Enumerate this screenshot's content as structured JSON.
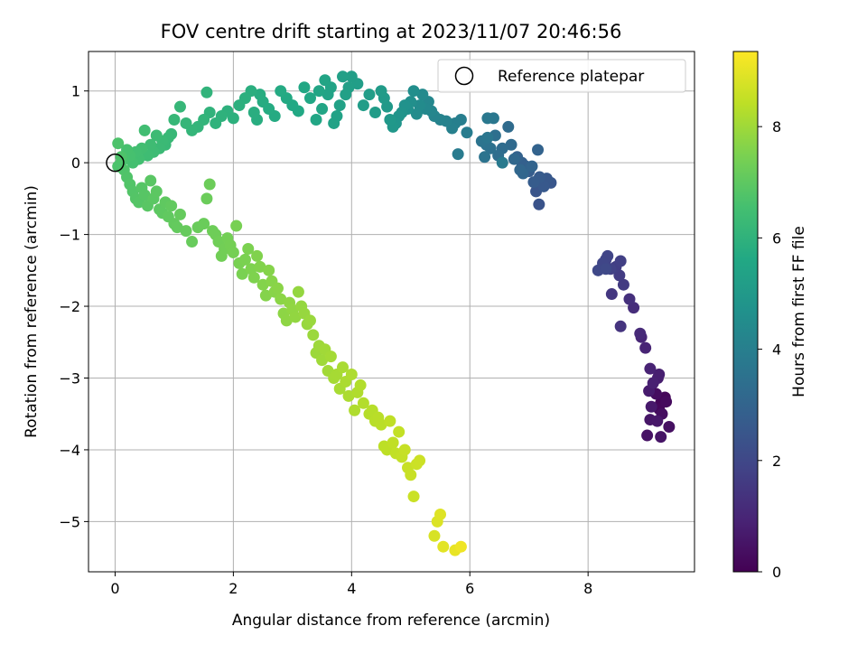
{
  "chart_data": {
    "type": "scatter",
    "title": "FOV centre drift starting at 2023/11/07 20:46:56",
    "xlabel": "Angular distance from reference (arcmin)",
    "ylabel": "Rotation from reference (arcmin)",
    "xlim": [
      -0.45,
      9.8
    ],
    "ylim": [
      -5.7,
      1.55
    ],
    "xticks": [
      "0",
      "2",
      "4",
      "6",
      "8"
    ],
    "yticks": [
      "1",
      "0",
      "−1",
      "−2",
      "−3",
      "−4",
      "−5"
    ],
    "grid": true,
    "legend": {
      "label": "Reference platepar",
      "placement": "top-right"
    },
    "reference_point": {
      "x": 0,
      "y": 0
    },
    "colorbar": {
      "label": "Hours from first FF file",
      "colormap": "viridis",
      "range": [
        0,
        9.35
      ],
      "ticks": [
        "0",
        "2",
        "4",
        "6",
        "8"
      ]
    },
    "points": [
      [
        9.27,
        -3.3,
        0.05
      ],
      [
        9.23,
        -3.35,
        0.1
      ],
      [
        9.3,
        -3.27,
        0.15
      ],
      [
        9.2,
        -3.43,
        0.2
      ],
      [
        9.32,
        -3.33,
        0.25
      ],
      [
        9.15,
        -3.22,
        0.3
      ],
      [
        9.25,
        -3.5,
        0.35
      ],
      [
        9.37,
        -3.68,
        0.4
      ],
      [
        9.0,
        -3.8,
        0.45
      ],
      [
        9.23,
        -3.82,
        0.5
      ],
      [
        9.05,
        -3.58,
        0.55
      ],
      [
        9.17,
        -3.6,
        0.6
      ],
      [
        9.07,
        -3.4,
        0.65
      ],
      [
        9.03,
        -3.18,
        0.7
      ],
      [
        9.18,
        -3.0,
        0.75
      ],
      [
        9.2,
        -2.95,
        0.8
      ],
      [
        9.1,
        -3.07,
        0.85
      ],
      [
        9.05,
        -2.87,
        0.9
      ],
      [
        8.97,
        -2.58,
        0.95
      ],
      [
        8.9,
        -2.43,
        1.0
      ],
      [
        8.88,
        -2.38,
        1.1
      ],
      [
        8.77,
        -2.02,
        1.2
      ],
      [
        8.7,
        -1.9,
        1.3
      ],
      [
        8.55,
        -2.28,
        1.4
      ],
      [
        8.4,
        -1.83,
        1.5
      ],
      [
        8.6,
        -1.7,
        1.6
      ],
      [
        8.53,
        -1.57,
        1.65
      ],
      [
        8.47,
        -1.45,
        1.7
      ],
      [
        8.55,
        -1.37,
        1.75
      ],
      [
        8.38,
        -1.48,
        1.8
      ],
      [
        8.3,
        -1.35,
        1.85
      ],
      [
        8.33,
        -1.3,
        1.9
      ],
      [
        8.25,
        -1.4,
        1.95
      ],
      [
        8.17,
        -1.5,
        2.0
      ],
      [
        8.3,
        -1.48,
        2.05
      ],
      [
        7.17,
        -0.58,
        2.4
      ],
      [
        7.12,
        -0.4,
        2.45
      ],
      [
        7.37,
        -0.28,
        2.5
      ],
      [
        7.3,
        -0.22,
        2.55
      ],
      [
        7.25,
        -0.33,
        2.6
      ],
      [
        7.18,
        -0.2,
        2.65
      ],
      [
        7.08,
        -0.27,
        2.7
      ],
      [
        7.0,
        -0.12,
        2.75
      ],
      [
        6.95,
        -0.05,
        2.8
      ],
      [
        6.88,
        0.0,
        2.85
      ],
      [
        6.8,
        0.08,
        2.9
      ],
      [
        7.15,
        0.18,
        2.95
      ],
      [
        7.05,
        -0.05,
        3.0
      ],
      [
        6.9,
        -0.15,
        3.05
      ],
      [
        6.85,
        -0.1,
        3.1
      ],
      [
        6.75,
        0.05,
        3.15
      ],
      [
        6.7,
        0.25,
        3.2
      ],
      [
        6.65,
        0.5,
        3.25
      ],
      [
        6.55,
        0.2,
        3.3
      ],
      [
        6.48,
        0.1,
        3.35
      ],
      [
        6.43,
        0.38,
        3.4
      ],
      [
        6.35,
        0.2,
        3.45
      ],
      [
        6.28,
        0.25,
        3.5
      ],
      [
        6.25,
        0.08,
        3.55
      ],
      [
        6.2,
        0.3,
        3.6
      ],
      [
        6.3,
        0.35,
        3.65
      ],
      [
        6.4,
        0.62,
        3.7
      ],
      [
        6.3,
        0.62,
        3.75
      ],
      [
        6.55,
        0.0,
        3.8
      ],
      [
        5.8,
        0.12,
        3.85
      ],
      [
        5.95,
        0.42,
        3.9
      ],
      [
        5.85,
        0.6,
        3.95
      ],
      [
        5.75,
        0.55,
        4.0
      ],
      [
        5.7,
        0.48,
        4.05
      ],
      [
        5.6,
        0.58,
        4.1
      ],
      [
        5.5,
        0.6,
        4.15
      ],
      [
        5.4,
        0.65,
        4.2
      ],
      [
        5.35,
        0.72,
        4.25
      ],
      [
        5.3,
        0.85,
        4.3
      ],
      [
        5.25,
        0.75,
        4.35
      ],
      [
        5.2,
        0.95,
        4.4
      ],
      [
        5.15,
        0.8,
        4.45
      ],
      [
        5.1,
        0.68,
        4.5
      ],
      [
        5.05,
        1.0,
        4.55
      ],
      [
        5.0,
        0.85,
        4.6
      ],
      [
        4.95,
        0.75,
        4.65
      ],
      [
        4.9,
        0.8,
        4.7
      ],
      [
        4.85,
        0.7,
        4.75
      ],
      [
        4.8,
        0.65,
        4.8
      ],
      [
        4.75,
        0.55,
        4.85
      ],
      [
        4.7,
        0.5,
        4.9
      ],
      [
        4.65,
        0.6,
        4.95
      ],
      [
        4.6,
        0.78,
        5.0
      ],
      [
        4.55,
        0.9,
        5.05
      ],
      [
        4.5,
        1.0,
        5.1
      ],
      [
        4.4,
        0.7,
        5.12
      ],
      [
        4.3,
        0.95,
        5.15
      ],
      [
        4.2,
        0.8,
        5.18
      ],
      [
        4.1,
        1.1,
        5.2
      ],
      [
        4.0,
        1.2,
        5.22
      ],
      [
        3.95,
        1.05,
        5.25
      ],
      [
        3.9,
        0.95,
        5.28
      ],
      [
        3.85,
        1.2,
        5.3
      ],
      [
        3.8,
        0.8,
        5.32
      ],
      [
        3.75,
        0.65,
        5.35
      ],
      [
        3.7,
        0.55,
        5.38
      ],
      [
        3.65,
        1.05,
        5.4
      ],
      [
        3.6,
        0.95,
        5.42
      ],
      [
        3.55,
        1.15,
        5.45
      ],
      [
        3.5,
        0.75,
        5.48
      ],
      [
        3.45,
        1.0,
        5.5
      ],
      [
        3.4,
        0.6,
        5.52
      ],
      [
        3.3,
        0.9,
        5.55
      ],
      [
        3.2,
        1.05,
        5.58
      ],
      [
        3.1,
        0.72,
        5.6
      ],
      [
        3.0,
        0.8,
        5.62
      ],
      [
        2.9,
        0.9,
        5.65
      ],
      [
        2.8,
        1.0,
        5.68
      ],
      [
        2.7,
        0.65,
        5.7
      ],
      [
        2.6,
        0.75,
        5.72
      ],
      [
        2.5,
        0.85,
        5.75
      ],
      [
        2.45,
        0.95,
        5.78
      ],
      [
        2.4,
        0.6,
        5.8
      ],
      [
        2.35,
        0.7,
        5.82
      ],
      [
        2.3,
        1.0,
        5.85
      ],
      [
        2.2,
        0.9,
        5.88
      ],
      [
        2.1,
        0.8,
        5.9
      ],
      [
        2.0,
        0.62,
        5.92
      ],
      [
        1.9,
        0.72,
        5.95
      ],
      [
        1.8,
        0.65,
        5.98
      ],
      [
        1.7,
        0.55,
        6.0
      ],
      [
        1.6,
        0.7,
        6.02
      ],
      [
        1.55,
        0.98,
        6.05
      ],
      [
        1.5,
        0.6,
        6.08
      ],
      [
        1.4,
        0.5,
        6.1
      ],
      [
        1.3,
        0.45,
        6.12
      ],
      [
        1.2,
        0.55,
        6.15
      ],
      [
        1.1,
        0.78,
        6.18
      ],
      [
        1.0,
        0.6,
        6.2
      ],
      [
        0.95,
        0.4,
        6.22
      ],
      [
        0.9,
        0.35,
        6.25
      ],
      [
        0.85,
        0.25,
        6.28
      ],
      [
        0.8,
        0.3,
        6.3
      ],
      [
        0.75,
        0.2,
        6.32
      ],
      [
        0.7,
        0.38,
        6.35
      ],
      [
        0.65,
        0.15,
        6.38
      ],
      [
        0.6,
        0.25,
        6.4
      ],
      [
        0.55,
        0.1,
        6.42
      ],
      [
        0.5,
        0.45,
        6.45
      ],
      [
        0.45,
        0.2,
        6.48
      ],
      [
        0.4,
        0.05,
        6.5
      ],
      [
        0.35,
        0.15,
        6.52
      ],
      [
        0.3,
        0.0,
        6.55
      ],
      [
        0.25,
        0.1,
        6.58
      ],
      [
        0.2,
        0.18,
        6.6
      ],
      [
        0.15,
        0.05,
        6.62
      ],
      [
        0.1,
        0.0,
        6.65
      ],
      [
        0.05,
        -0.05,
        6.68
      ],
      [
        0.05,
        0.27,
        6.7
      ],
      [
        0.1,
        0.08,
        6.72
      ],
      [
        0.15,
        -0.1,
        6.74
      ],
      [
        0.2,
        -0.2,
        6.76
      ],
      [
        0.25,
        -0.3,
        6.78
      ],
      [
        0.3,
        -0.4,
        6.8
      ],
      [
        0.35,
        -0.5,
        6.82
      ],
      [
        0.4,
        -0.55,
        6.84
      ],
      [
        0.45,
        -0.35,
        6.86
      ],
      [
        0.5,
        -0.45,
        6.88
      ],
      [
        0.55,
        -0.6,
        6.9
      ],
      [
        0.6,
        -0.25,
        6.92
      ],
      [
        0.65,
        -0.5,
        6.94
      ],
      [
        0.7,
        -0.4,
        6.96
      ],
      [
        0.75,
        -0.65,
        6.98
      ],
      [
        0.8,
        -0.7,
        7.0
      ],
      [
        0.85,
        -0.55,
        7.02
      ],
      [
        0.9,
        -0.75,
        7.04
      ],
      [
        0.95,
        -0.6,
        7.06
      ],
      [
        1.0,
        -0.85,
        7.08
      ],
      [
        1.05,
        -0.9,
        7.1
      ],
      [
        1.1,
        -0.72,
        7.12
      ],
      [
        1.2,
        -0.95,
        7.14
      ],
      [
        1.3,
        -1.1,
        7.16
      ],
      [
        1.4,
        -0.9,
        7.18
      ],
      [
        1.5,
        -0.85,
        7.2
      ],
      [
        1.55,
        -0.5,
        7.22
      ],
      [
        1.6,
        -0.3,
        7.24
      ],
      [
        1.65,
        -0.95,
        7.26
      ],
      [
        1.7,
        -1.0,
        7.28
      ],
      [
        1.75,
        -1.1,
        7.3
      ],
      [
        1.8,
        -1.3,
        7.32
      ],
      [
        1.85,
        -1.2,
        7.34
      ],
      [
        1.9,
        -1.05,
        7.36
      ],
      [
        1.95,
        -1.15,
        7.38
      ],
      [
        2.0,
        -1.25,
        7.4
      ],
      [
        2.05,
        -0.88,
        7.42
      ],
      [
        2.1,
        -1.4,
        7.44
      ],
      [
        2.15,
        -1.55,
        7.46
      ],
      [
        2.2,
        -1.35,
        7.48
      ],
      [
        2.25,
        -1.2,
        7.5
      ],
      [
        2.3,
        -1.48,
        7.52
      ],
      [
        2.35,
        -1.6,
        7.54
      ],
      [
        2.4,
        -1.3,
        7.56
      ],
      [
        2.45,
        -1.45,
        7.58
      ],
      [
        2.5,
        -1.7,
        7.6
      ],
      [
        2.55,
        -1.85,
        7.62
      ],
      [
        2.6,
        -1.5,
        7.64
      ],
      [
        2.65,
        -1.65,
        7.66
      ],
      [
        2.7,
        -1.8,
        7.68
      ],
      [
        2.75,
        -1.75,
        7.7
      ],
      [
        2.8,
        -1.9,
        7.72
      ],
      [
        2.85,
        -2.1,
        7.74
      ],
      [
        2.9,
        -2.2,
        7.76
      ],
      [
        2.95,
        -1.95,
        7.78
      ],
      [
        3.0,
        -2.05,
        7.8
      ],
      [
        3.05,
        -2.15,
        7.82
      ],
      [
        3.1,
        -1.8,
        7.84
      ],
      [
        3.15,
        -2.0,
        7.86
      ],
      [
        3.2,
        -2.1,
        7.88
      ],
      [
        3.25,
        -2.25,
        7.9
      ],
      [
        3.3,
        -2.2,
        7.92
      ],
      [
        3.35,
        -2.4,
        7.94
      ],
      [
        3.4,
        -2.65,
        7.96
      ],
      [
        3.45,
        -2.55,
        7.98
      ],
      [
        3.5,
        -2.75,
        8.0
      ],
      [
        3.55,
        -2.6,
        8.02
      ],
      [
        3.6,
        -2.9,
        8.04
      ],
      [
        3.65,
        -2.7,
        8.06
      ],
      [
        3.7,
        -3.0,
        8.08
      ],
      [
        3.75,
        -2.95,
        8.1
      ],
      [
        3.8,
        -3.15,
        8.12
      ],
      [
        3.85,
        -2.85,
        8.14
      ],
      [
        3.9,
        -3.05,
        8.16
      ],
      [
        3.95,
        -3.25,
        8.18
      ],
      [
        4.0,
        -2.95,
        8.2
      ],
      [
        4.05,
        -3.45,
        8.22
      ],
      [
        4.1,
        -3.2,
        8.24
      ],
      [
        4.15,
        -3.1,
        8.26
      ],
      [
        4.2,
        -3.35,
        8.28
      ],
      [
        4.3,
        -3.5,
        8.3
      ],
      [
        4.35,
        -3.45,
        8.32
      ],
      [
        4.4,
        -3.6,
        8.34
      ],
      [
        4.45,
        -3.55,
        8.36
      ],
      [
        4.5,
        -3.65,
        8.38
      ],
      [
        4.55,
        -3.95,
        8.4
      ],
      [
        4.6,
        -4.0,
        8.42
      ],
      [
        4.65,
        -3.6,
        8.44
      ],
      [
        4.7,
        -3.9,
        8.46
      ],
      [
        4.75,
        -4.05,
        8.48
      ],
      [
        4.8,
        -3.75,
        8.5
      ],
      [
        4.85,
        -4.1,
        8.52
      ],
      [
        4.9,
        -4.0,
        8.54
      ],
      [
        4.95,
        -4.25,
        8.56
      ],
      [
        5.0,
        -4.35,
        8.58
      ],
      [
        5.05,
        -4.65,
        8.6
      ],
      [
        5.1,
        -4.2,
        8.62
      ],
      [
        5.15,
        -4.15,
        8.64
      ],
      [
        5.4,
        -5.2,
        8.8
      ],
      [
        5.45,
        -5.0,
        8.85
      ],
      [
        5.5,
        -4.9,
        8.9
      ],
      [
        5.55,
        -5.35,
        8.95
      ],
      [
        5.75,
        -5.4,
        9.05
      ],
      [
        5.85,
        -5.35,
        9.15
      ]
    ]
  }
}
